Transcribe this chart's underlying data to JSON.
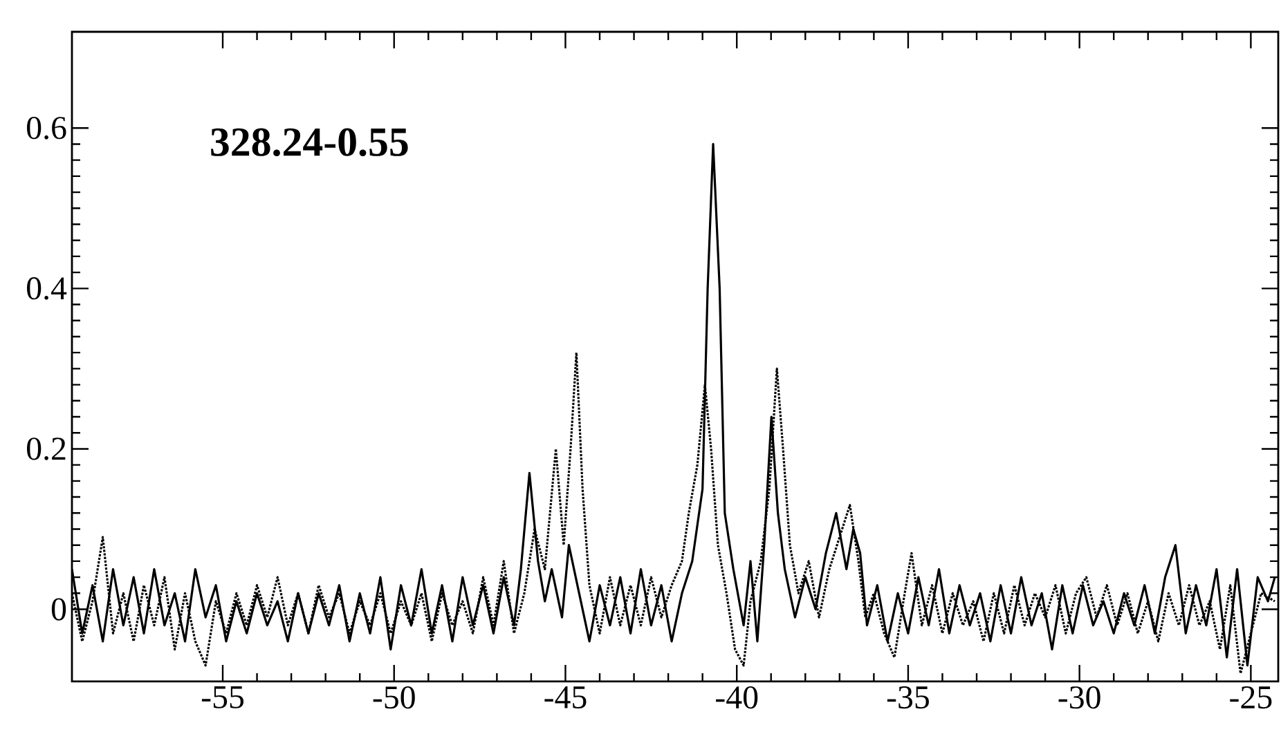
{
  "chart_data": {
    "type": "line",
    "annotations": [
      "328.24-0.55"
    ],
    "xlim": [
      -59.4,
      -24.2
    ],
    "ylim": [
      -0.09,
      0.72
    ],
    "xticks": [
      -55,
      -50,
      -45,
      -40,
      -35,
      -30,
      -25
    ],
    "yticks": [
      0,
      0.2,
      0.4,
      0.6
    ],
    "grid": false,
    "marker": "none",
    "series": [
      {
        "color": "#000000",
        "line_style": "solid",
        "x": [
          -59.4,
          -59.1,
          -58.8,
          -58.5,
          -58.2,
          -57.9,
          -57.6,
          -57.3,
          -57.0,
          -56.7,
          -56.4,
          -56.1,
          -55.8,
          -55.5,
          -55.2,
          -54.9,
          -54.6,
          -54.3,
          -54.0,
          -53.7,
          -53.4,
          -53.1,
          -52.8,
          -52.5,
          -52.2,
          -51.9,
          -51.6,
          -51.3,
          -51.0,
          -50.7,
          -50.4,
          -50.1,
          -49.8,
          -49.5,
          -49.2,
          -48.9,
          -48.6,
          -48.3,
          -48.0,
          -47.7,
          -47.4,
          -47.1,
          -46.8,
          -46.5,
          -46.3,
          -46.05,
          -45.8,
          -45.6,
          -45.4,
          -45.1,
          -44.9,
          -44.6,
          -44.3,
          -44.0,
          -43.7,
          -43.4,
          -43.1,
          -42.8,
          -42.5,
          -42.2,
          -41.9,
          -41.6,
          -41.3,
          -41.0,
          -40.85,
          -40.69,
          -40.5,
          -40.35,
          -40.1,
          -39.8,
          -39.6,
          -39.4,
          -39.2,
          -38.99,
          -38.8,
          -38.6,
          -38.3,
          -38.0,
          -37.7,
          -37.4,
          -37.1,
          -36.8,
          -36.6,
          -36.4,
          -36.2,
          -35.9,
          -35.6,
          -35.3,
          -35.0,
          -34.7,
          -34.4,
          -34.1,
          -33.8,
          -33.5,
          -33.2,
          -32.9,
          -32.6,
          -32.3,
          -32.0,
          -31.7,
          -31.4,
          -31.1,
          -30.8,
          -30.5,
          -30.2,
          -29.9,
          -29.6,
          -29.3,
          -29.0,
          -28.7,
          -28.4,
          -28.1,
          -27.8,
          -27.5,
          -27.2,
          -26.9,
          -26.6,
          -26.3,
          -26.0,
          -25.7,
          -25.4,
          -25.1,
          -24.8,
          -24.5,
          -24.3
        ],
        "values": [
          0.05,
          -0.03,
          0.03,
          -0.04,
          0.05,
          -0.02,
          0.04,
          -0.03,
          0.05,
          -0.02,
          0.02,
          -0.04,
          0.05,
          -0.01,
          0.03,
          -0.04,
          0.01,
          -0.03,
          0.02,
          -0.02,
          0.01,
          -0.04,
          0.02,
          -0.03,
          0.02,
          -0.02,
          0.03,
          -0.04,
          0.02,
          -0.03,
          0.04,
          -0.05,
          0.03,
          -0.02,
          0.05,
          -0.03,
          0.03,
          -0.04,
          0.04,
          -0.02,
          0.03,
          -0.03,
          0.04,
          -0.02,
          0.05,
          0.17,
          0.06,
          0.01,
          0.05,
          -0.01,
          0.08,
          0.02,
          -0.04,
          0.03,
          -0.02,
          0.04,
          -0.03,
          0.05,
          -0.02,
          0.03,
          -0.04,
          0.02,
          0.06,
          0.15,
          0.4,
          0.58,
          0.4,
          0.12,
          0.05,
          -0.02,
          0.06,
          -0.04,
          0.08,
          0.24,
          0.12,
          0.05,
          -0.01,
          0.04,
          0.0,
          0.07,
          0.12,
          0.05,
          0.1,
          0.07,
          -0.02,
          0.03,
          -0.04,
          0.02,
          -0.03,
          0.04,
          -0.02,
          0.05,
          -0.03,
          0.03,
          -0.02,
          0.02,
          -0.04,
          0.03,
          -0.03,
          0.04,
          -0.02,
          0.02,
          -0.05,
          0.03,
          -0.03,
          0.03,
          -0.02,
          0.01,
          -0.03,
          0.02,
          -0.02,
          0.03,
          -0.03,
          0.04,
          0.08,
          -0.03,
          0.03,
          -0.02,
          0.05,
          -0.06,
          0.05,
          -0.07,
          0.04,
          0.01,
          0.04
        ]
      },
      {
        "color": "#000000",
        "line_style": "dotted",
        "x": [
          -59.4,
          -59.1,
          -58.8,
          -58.5,
          -58.2,
          -57.9,
          -57.6,
          -57.3,
          -57.0,
          -56.7,
          -56.4,
          -56.1,
          -55.8,
          -55.5,
          -55.2,
          -54.9,
          -54.6,
          -54.3,
          -54.0,
          -53.7,
          -53.4,
          -53.1,
          -52.8,
          -52.5,
          -52.2,
          -51.9,
          -51.6,
          -51.3,
          -51.0,
          -50.7,
          -50.4,
          -50.1,
          -49.8,
          -49.5,
          -49.2,
          -48.9,
          -48.6,
          -48.3,
          -48.0,
          -47.7,
          -47.4,
          -47.1,
          -46.8,
          -46.5,
          -46.2,
          -45.9,
          -45.6,
          -45.28,
          -45.05,
          -44.85,
          -44.68,
          -44.5,
          -44.3,
          -44.0,
          -43.7,
          -43.4,
          -43.1,
          -42.8,
          -42.5,
          -42.2,
          -41.9,
          -41.6,
          -41.4,
          -41.15,
          -40.93,
          -40.75,
          -40.55,
          -40.3,
          -40.05,
          -39.8,
          -39.6,
          -39.3,
          -39.05,
          -38.83,
          -38.65,
          -38.45,
          -38.2,
          -37.9,
          -37.6,
          -37.3,
          -37.0,
          -36.7,
          -36.45,
          -36.25,
          -36.0,
          -35.7,
          -35.4,
          -35.1,
          -34.9,
          -34.6,
          -34.3,
          -34.0,
          -33.7,
          -33.4,
          -33.1,
          -32.8,
          -32.5,
          -32.2,
          -31.9,
          -31.6,
          -31.3,
          -31.0,
          -30.7,
          -30.4,
          -30.1,
          -29.8,
          -29.5,
          -29.2,
          -28.9,
          -28.6,
          -28.3,
          -28.0,
          -27.7,
          -27.4,
          -27.1,
          -26.8,
          -26.5,
          -26.2,
          -25.9,
          -25.6,
          -25.3,
          -25.0,
          -24.7,
          -24.3
        ],
        "values": [
          0.02,
          -0.04,
          0.01,
          0.09,
          -0.03,
          0.02,
          -0.04,
          0.03,
          -0.02,
          0.04,
          -0.05,
          0.02,
          -0.04,
          -0.07,
          0.01,
          -0.03,
          0.02,
          -0.02,
          0.03,
          -0.01,
          0.04,
          -0.02,
          0.02,
          -0.03,
          0.03,
          -0.01,
          0.02,
          -0.03,
          0.01,
          -0.02,
          0.02,
          -0.03,
          0.01,
          -0.02,
          0.02,
          -0.04,
          0.02,
          -0.02,
          0.01,
          -0.03,
          0.04,
          -0.02,
          0.06,
          -0.03,
          0.02,
          0.1,
          0.05,
          0.2,
          0.08,
          0.2,
          0.32,
          0.15,
          0.03,
          -0.03,
          0.04,
          -0.02,
          0.03,
          -0.02,
          0.04,
          -0.01,
          0.03,
          0.06,
          0.12,
          0.18,
          0.28,
          0.2,
          0.08,
          0.02,
          -0.05,
          -0.07,
          0.01,
          0.06,
          0.15,
          0.3,
          0.2,
          0.08,
          0.02,
          0.06,
          -0.01,
          0.05,
          0.09,
          0.13,
          0.06,
          -0.01,
          0.02,
          -0.03,
          -0.06,
          0.02,
          0.07,
          -0.02,
          0.03,
          -0.03,
          0.02,
          -0.02,
          0.01,
          -0.04,
          0.02,
          -0.03,
          0.03,
          -0.02,
          0.02,
          -0.01,
          0.03,
          -0.03,
          0.02,
          0.04,
          -0.01,
          0.03,
          -0.02,
          0.02,
          -0.03,
          0.01,
          -0.04,
          0.02,
          -0.02,
          0.03,
          -0.02,
          0.01,
          -0.05,
          0.03,
          -0.08,
          -0.03,
          0.02,
          0.01
        ]
      }
    ]
  }
}
